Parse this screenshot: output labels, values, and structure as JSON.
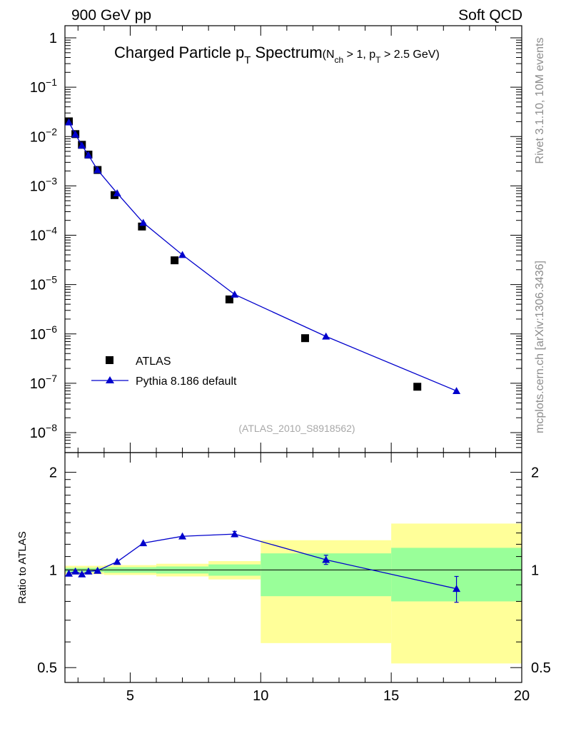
{
  "header": {
    "left": "900 GeV pp",
    "right": "Soft QCD"
  },
  "side_labels": {
    "rivet": "Rivet 3.1.10,  10M events",
    "mcplots": "mcplots.cern.ch [arXiv:1306.3436]"
  },
  "chart_data": {
    "type": "scatter",
    "title": {
      "main": "Charged Particle p",
      "main_sub": "T",
      "main_tail": " Spectrum",
      "cut_open": "(N",
      "cut_sub1": "ch",
      "cut_mid": " > 1, p",
      "cut_sub2": "T",
      "cut_close": " > 2.5 GeV)"
    },
    "analysis_id": "(ATLAS_2010_S8918562)",
    "xlim": [
      2.5,
      20
    ],
    "x_ticks": [
      "5",
      "10",
      "15",
      "20"
    ],
    "main_panel": {
      "yscale": "log",
      "ylim": [
        1e-08,
        1
      ],
      "y_ticks": [
        {
          "base": "1",
          "exp": ""
        },
        {
          "base": "10",
          "exp": "−1"
        },
        {
          "base": "10",
          "exp": "−2"
        },
        {
          "base": "10",
          "exp": "−3"
        },
        {
          "base": "10",
          "exp": "−4"
        },
        {
          "base": "10",
          "exp": "−5"
        },
        {
          "base": "10",
          "exp": "−6"
        },
        {
          "base": "10",
          "exp": "−7"
        },
        {
          "base": "10",
          "exp": "−8"
        }
      ],
      "legend": {
        "placement": "bottom-left",
        "entries": [
          "ATLAS",
          "Pythia 8.186 default"
        ]
      },
      "series": [
        {
          "name": "ATLAS",
          "marker": "square",
          "color": "#000000",
          "x": [
            2.65,
            2.9,
            3.15,
            3.4,
            3.75,
            4.4,
            5.45,
            6.7,
            8.8,
            11.7,
            16.0
          ],
          "y": [
            0.0203,
            0.0112,
            0.0068,
            0.0043,
            0.0021,
            0.00065,
            0.00015,
            3.1e-05,
            5e-06,
            8.2e-07,
            8.5e-08
          ]
        },
        {
          "name": "Pythia 8.186 default",
          "marker": "triangle",
          "color": "#0000cc",
          "x": [
            2.65,
            2.9,
            3.15,
            3.4,
            3.75,
            4.5,
            5.5,
            7.0,
            9.0,
            12.5,
            17.5
          ],
          "y": [
            0.0195,
            0.0111,
            0.0066,
            0.0042,
            0.0021,
            0.00071,
            0.000179,
            4e-05,
            6.3e-06,
            8.9e-07,
            7e-08
          ]
        }
      ]
    },
    "ratio_panel": {
      "ylabel": "Ratio to ATLAS",
      "ylim": [
        0.45,
        2.3
      ],
      "y_ticks": [
        "0.5",
        "1",
        "2"
      ],
      "reference": 1.0,
      "bands": [
        {
          "x0": 2.5,
          "x1": 4.0,
          "inner": [
            0.985,
            1.015
          ],
          "outer": [
            0.97,
            1.03
          ]
        },
        {
          "x0": 4.0,
          "x1": 6.0,
          "inner": [
            0.98,
            1.02
          ],
          "outer": [
            0.965,
            1.035
          ]
        },
        {
          "x0": 6.0,
          "x1": 8.0,
          "inner": [
            0.975,
            1.025
          ],
          "outer": [
            0.955,
            1.045
          ]
        },
        {
          "x0": 8.0,
          "x1": 10.0,
          "inner": [
            0.96,
            1.04
          ],
          "outer": [
            0.935,
            1.065
          ]
        },
        {
          "x0": 10.0,
          "x1": 15.0,
          "inner": [
            0.83,
            1.125
          ],
          "outer": [
            0.595,
            1.235
          ]
        },
        {
          "x0": 15.0,
          "x1": 20.0,
          "inner": [
            0.8,
            1.17
          ],
          "outer": [
            0.515,
            1.39
          ]
        }
      ],
      "series": [
        {
          "name": "Pythia 8.186 default",
          "color": "#0000cc",
          "x": [
            2.65,
            2.9,
            3.15,
            3.4,
            3.75,
            4.5,
            5.5,
            7.0,
            9.0,
            12.5,
            17.5
          ],
          "y": [
            0.975,
            0.99,
            0.97,
            0.99,
            0.995,
            1.06,
            1.21,
            1.27,
            1.29,
            1.075,
            0.875
          ],
          "err": [
            0,
            0,
            0,
            0,
            0,
            0,
            0,
            0,
            0.025,
            0.035,
            0.08
          ]
        }
      ]
    }
  }
}
